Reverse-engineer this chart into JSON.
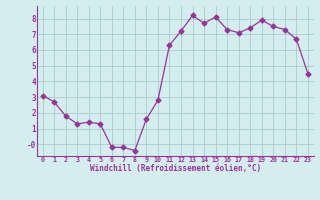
{
  "x": [
    0,
    1,
    2,
    3,
    4,
    5,
    6,
    7,
    8,
    9,
    10,
    11,
    12,
    13,
    14,
    15,
    16,
    17,
    18,
    19,
    20,
    21,
    22,
    23
  ],
  "y": [
    3.1,
    2.7,
    1.8,
    1.3,
    1.4,
    1.3,
    -0.2,
    -0.2,
    -0.4,
    1.6,
    2.8,
    6.3,
    7.2,
    8.2,
    7.7,
    8.1,
    7.3,
    7.1,
    7.4,
    7.9,
    7.5,
    7.3,
    6.7,
    4.5
  ],
  "line_color": "#993399",
  "marker": "D",
  "marker_size": 2.5,
  "bg_color": "#d4eef0",
  "grid_color": "#aacccc",
  "xlabel": "Windchill (Refroidissement éolien,°C)",
  "xlabel_color": "#993399",
  "tick_color": "#993399",
  "xlim": [
    -0.5,
    23.5
  ],
  "ylim": [
    -0.75,
    8.8
  ],
  "yticks": [
    0,
    1,
    2,
    3,
    4,
    5,
    6,
    7,
    8
  ],
  "xticks": [
    0,
    1,
    2,
    3,
    4,
    5,
    6,
    7,
    8,
    9,
    10,
    11,
    12,
    13,
    14,
    15,
    16,
    17,
    18,
    19,
    20,
    21,
    22,
    23
  ],
  "xtick_labels": [
    "0",
    "1",
    "2",
    "3",
    "4",
    "5",
    "6",
    "7",
    "8",
    "9",
    "10",
    "11",
    "12",
    "13",
    "14",
    "15",
    "16",
    "17",
    "18",
    "19",
    "20",
    "21",
    "22",
    "23"
  ],
  "ytick_labels": [
    "-0",
    "1",
    "2",
    "3",
    "4",
    "5",
    "6",
    "7",
    "8"
  ]
}
